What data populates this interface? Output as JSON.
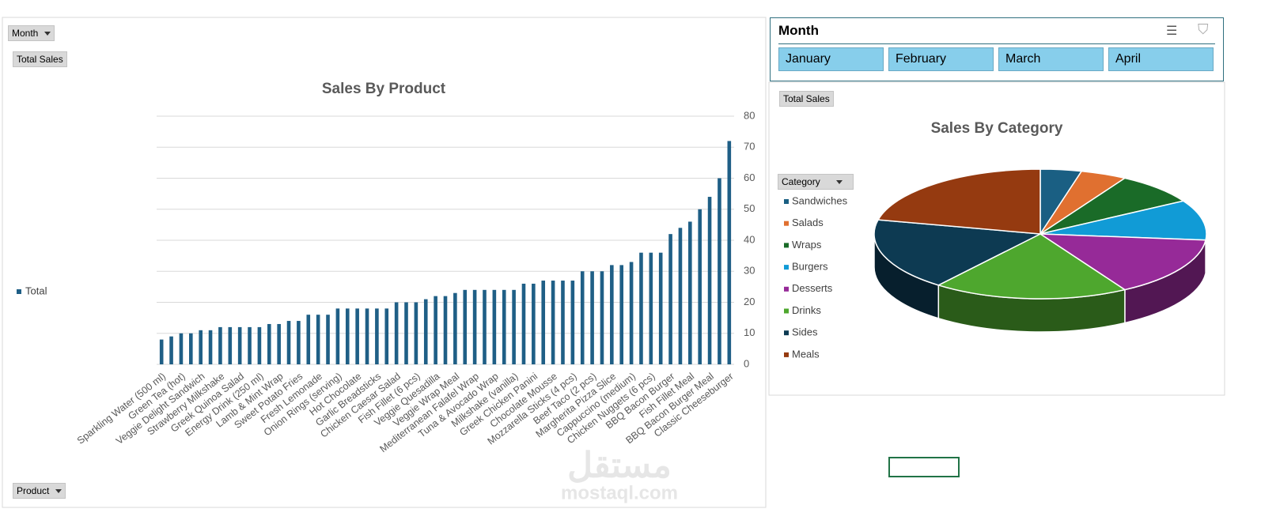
{
  "buttons": {
    "month": "Month",
    "total_sales": "Total Sales",
    "product": "Product",
    "pie_total_sales": "Total Sales",
    "category": "Category"
  },
  "slicer": {
    "title": "Month",
    "items": [
      "January",
      "February",
      "March",
      "April"
    ]
  },
  "watermark": {
    "arabic": "مستقل",
    "latin": "mostaql.com"
  },
  "chart_data": [
    {
      "type": "bar",
      "title": "Sales By Product",
      "categories": [
        "Sparkling Water (500 ml)",
        null,
        "Green Tea (hot)",
        null,
        "Veggie Delight Sandwich",
        null,
        "Strawberry Milkshake",
        null,
        "Greek Quinoa Salad",
        null,
        "Energy Drink (250 ml)",
        null,
        "Lamb & Mint Wrap",
        null,
        "Sweet Potato Fries",
        null,
        "Fresh Lemonade",
        null,
        "Onion Rings (serving)",
        null,
        "Hot Chocolate",
        null,
        "Garlic Breadsticks",
        null,
        "Chicken Caesar Salad",
        null,
        "Fish Fillet (6 pcs)",
        null,
        "Veggie Quesadilla",
        null,
        "Veggie Wrap Meal",
        null,
        "Mediterranean Falafel Wrap",
        null,
        "Tuna & Avocado Wrap",
        null,
        "Milkshake (vanilla)",
        null,
        "Greek Chicken Panini",
        null,
        "Chocolate Mousse",
        null,
        "Mozzarella Sticks (4 pcs)",
        null,
        "Beef Taco (2 pcs)",
        null,
        "Margherita Pizza Slice",
        null,
        "Cappuccino (medium)",
        null,
        "Chicken Nuggets (6 pcs)",
        null,
        "BBQ Bacon Burger",
        null,
        "Fish Fillet Meal",
        null,
        "BBQ Bacon Burger Meal",
        null,
        "Classic Cheeseburger"
      ],
      "series": [
        {
          "name": "Total",
          "color": "#1f5f86",
          "values": [
            8,
            9,
            10,
            10,
            11,
            11,
            12,
            12,
            12,
            12,
            12,
            13,
            13,
            14,
            14,
            16,
            16,
            16,
            18,
            18,
            18,
            18,
            18,
            18,
            20,
            20,
            20,
            21,
            22,
            22,
            23,
            24,
            24,
            24,
            24,
            24,
            24,
            26,
            26,
            27,
            27,
            27,
            27,
            30,
            30,
            30,
            32,
            32,
            33,
            36,
            36,
            36,
            42,
            44,
            46,
            50,
            54,
            60,
            72
          ]
        }
      ],
      "ylim": [
        0,
        80
      ],
      "yticks": [
        0,
        10,
        20,
        30,
        40,
        50,
        60,
        70,
        80
      ],
      "grid": true,
      "y_axis_side": "right",
      "legend": "left"
    },
    {
      "type": "pie",
      "title": "Sales By Category",
      "categories": [
        "Sandwiches",
        "Salads",
        "Wraps",
        "Burgers",
        "Desserts",
        "Drinks",
        "Sides",
        "Meals"
      ],
      "values": [
        4,
        4.5,
        8,
        10,
        15,
        19,
        18,
        21.5
      ],
      "colors": [
        "#1a5f83",
        "#e07030",
        "#1a6b28",
        "#119bd6",
        "#962a98",
        "#4ea72e",
        "#0d3a52",
        "#953a10"
      ],
      "legend": "left",
      "three_d": true
    }
  ]
}
